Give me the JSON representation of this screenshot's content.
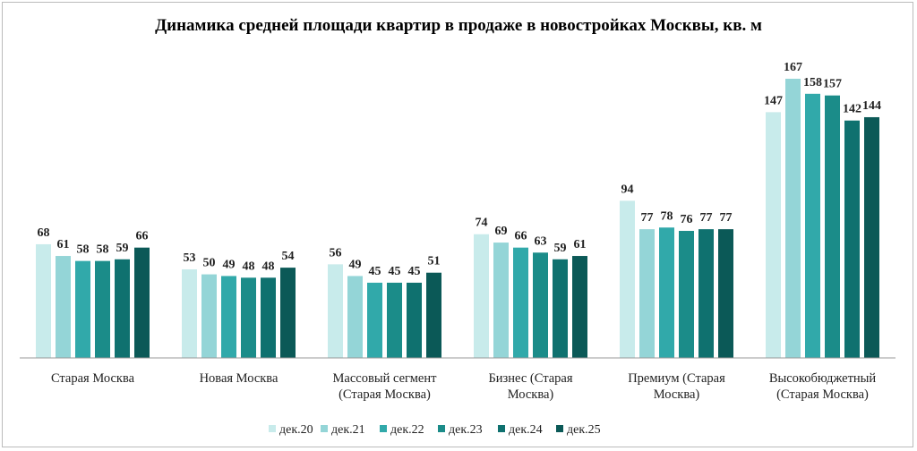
{
  "chart_data": {
    "type": "bar",
    "title": "Динамика средней площади квартир в продаже в новостройках  Москвы, кв. м",
    "categories": [
      [
        "Старая Москва"
      ],
      [
        "Новая Москва"
      ],
      [
        "Массовый сегмент",
        "(Старая Москва)"
      ],
      [
        "Бизнес (Старая",
        "Москва)"
      ],
      [
        "Премиум (Старая",
        "Москва)"
      ],
      [
        "Высокобюджетный",
        "(Старая Москва)"
      ]
    ],
    "series": [
      {
        "name": "дек.20",
        "color": "#c8ebeb",
        "values": [
          68,
          53,
          56,
          74,
          94,
          147
        ]
      },
      {
        "name": "дек.21",
        "color": "#94d5d7",
        "values": [
          61,
          50,
          49,
          69,
          77,
          167
        ]
      },
      {
        "name": "дек.22",
        "color": "#31a9aa",
        "values": [
          58,
          49,
          45,
          66,
          78,
          158
        ]
      },
      {
        "name": "дек.23",
        "color": "#1b8c89",
        "values": [
          58,
          48,
          45,
          63,
          76,
          157
        ]
      },
      {
        "name": "дек.24",
        "color": "#0f716f",
        "values": [
          59,
          48,
          45,
          59,
          77,
          142
        ]
      },
      {
        "name": "дек.25",
        "color": "#0b5957",
        "values": [
          66,
          54,
          51,
          61,
          77,
          144
        ]
      }
    ],
    "ylim": [
      0,
      175
    ],
    "grid": false,
    "legend": "bottom",
    "data_labels": true
  }
}
